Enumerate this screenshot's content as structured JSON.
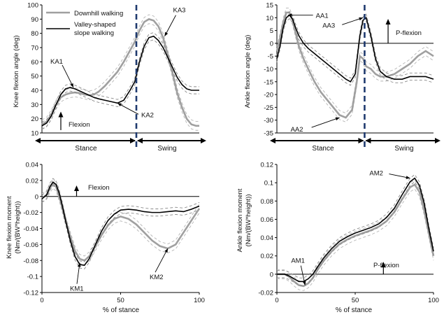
{
  "legend": [
    {
      "label": "Downhill walking",
      "color": "#a0a0a0"
    },
    {
      "label": "Valley-shaped slope walking",
      "color": "#000000"
    }
  ],
  "x_label": "% of stance",
  "colors": {
    "downhill": "#a0a0a0",
    "valley": "#000000",
    "divider": "#1f3a6e"
  },
  "chart_data": [
    {
      "id": "knee_angle",
      "type": "line",
      "ylabel": "Knee flexion angle (deg)",
      "xlim": [
        0,
        100
      ],
      "ylim": [
        10,
        100
      ],
      "yticks": [
        10,
        20,
        30,
        40,
        50,
        60,
        70,
        80,
        90,
        100
      ],
      "xticks": [],
      "toe_off": 60,
      "phase_labels": {
        "stance": "Stance",
        "swing": "Swing"
      },
      "arrow_label": "Flexion",
      "annotations": [
        {
          "label": "KA1",
          "x": 20,
          "y": 42
        },
        {
          "label": "KA2",
          "x": 48,
          "y": 31
        },
        {
          "label": "KA3",
          "x": 78,
          "y": 78
        }
      ],
      "series": [
        {
          "name": "Downhill walking",
          "x": [
            0,
            3,
            6,
            9,
            12,
            15,
            18,
            21,
            24,
            27,
            30,
            33,
            36,
            40,
            44,
            48,
            52,
            56,
            59,
            62,
            65,
            68,
            71,
            74,
            77,
            80,
            83,
            86,
            89,
            92,
            95,
            98,
            100
          ],
          "y": [
            16,
            18,
            23,
            30,
            35,
            37,
            38,
            38.5,
            38,
            37,
            36.5,
            37,
            39,
            43,
            48,
            53,
            60,
            68,
            74,
            82,
            88,
            90,
            89,
            85,
            77,
            65,
            52,
            38,
            28,
            20,
            16,
            15,
            15
          ]
        },
        {
          "name": "Valley-shaped slope walking",
          "x": [
            0,
            3,
            6,
            9,
            12,
            15,
            18,
            21,
            24,
            27,
            30,
            33,
            36,
            40,
            44,
            48,
            52,
            56,
            59,
            62,
            65,
            68,
            71,
            74,
            77,
            80,
            83,
            86,
            89,
            92,
            95,
            98,
            100
          ],
          "y": [
            15,
            17,
            22,
            30,
            37,
            41,
            42,
            41,
            39.5,
            38,
            36.5,
            35,
            34,
            33,
            32,
            31,
            33,
            40,
            46,
            60,
            71,
            77,
            78,
            75,
            70,
            63,
            56,
            49,
            44,
            41,
            40,
            40,
            40
          ]
        }
      ]
    },
    {
      "id": "ankle_angle",
      "type": "line",
      "ylabel": "Ankle flexion angle (deg)",
      "xlim": [
        0,
        100
      ],
      "ylim": [
        -35,
        15
      ],
      "yticks": [
        -35,
        -30,
        -25,
        -20,
        -15,
        -10,
        -5,
        0,
        5,
        10,
        15
      ],
      "xticks": [],
      "toe_off": 56,
      "phase_labels": {
        "stance": "Stance",
        "swing": "Swing"
      },
      "arrow_label": "P-flexion",
      "annotations": [
        {
          "label": "AA1",
          "x": 7,
          "y": 11
        },
        {
          "label": "AA2",
          "x": 40,
          "y": -29
        },
        {
          "label": "AA3",
          "x": 55,
          "y": 10
        }
      ],
      "series": [
        {
          "name": "Downhill walking",
          "x": [
            0,
            2,
            4,
            6,
            8,
            10,
            12,
            14,
            17,
            20,
            24,
            28,
            32,
            36,
            40,
            44,
            48,
            51,
            53,
            55,
            57,
            60,
            63,
            66,
            70,
            75,
            80,
            85,
            90,
            95,
            100
          ],
          "y": [
            -3,
            2,
            8,
            12,
            12,
            9,
            4,
            -1,
            -6,
            -10,
            -15,
            -19,
            -22,
            -25,
            -28,
            -29,
            -26,
            -15,
            -5,
            -6,
            -9,
            -10,
            -12,
            -13,
            -13,
            -12,
            -10,
            -8,
            -5,
            -3,
            -5
          ]
        },
        {
          "name": "Valley-shaped slope walking",
          "x": [
            0,
            2,
            4,
            6,
            8,
            10,
            12,
            14,
            17,
            20,
            24,
            28,
            32,
            36,
            40,
            44,
            47,
            50,
            53,
            55,
            57,
            60,
            63,
            66,
            70,
            75,
            80,
            85,
            90,
            95,
            100
          ],
          "y": [
            -6,
            -1,
            6,
            10,
            11,
            9.5,
            6,
            3,
            0,
            -2,
            -4,
            -6,
            -8,
            -10,
            -12,
            -14,
            -15,
            -12,
            3,
            9,
            10,
            3,
            -6,
            -11,
            -13,
            -14,
            -14,
            -13,
            -13,
            -13,
            -14
          ]
        }
      ]
    },
    {
      "id": "knee_moment",
      "type": "line",
      "ylabel": "Knee flexion moment (Nm/(BW*height))",
      "xlim": [
        0,
        100
      ],
      "ylim": [
        -0.12,
        0.04
      ],
      "yticks": [
        -0.12,
        -0.1,
        -0.08,
        -0.06,
        -0.04,
        -0.02,
        0,
        0.02,
        0.04
      ],
      "xticks": [
        0,
        50,
        100
      ],
      "arrow_label": "Flexion",
      "annotations": [
        {
          "label": "KM1",
          "x": 24,
          "y": -0.083
        },
        {
          "label": "KM2",
          "x": 80,
          "y": -0.065
        }
      ],
      "series": [
        {
          "name": "Downhill walking",
          "x": [
            0,
            3,
            5,
            7,
            9,
            11,
            13,
            15,
            18,
            21,
            24,
            27,
            30,
            34,
            38,
            42,
            46,
            50,
            55,
            60,
            65,
            70,
            75,
            80,
            85,
            90,
            95,
            100
          ],
          "y": [
            -0.002,
            0.002,
            0.01,
            0.016,
            0.012,
            0,
            -0.015,
            -0.03,
            -0.05,
            -0.068,
            -0.078,
            -0.08,
            -0.075,
            -0.062,
            -0.048,
            -0.036,
            -0.028,
            -0.025,
            -0.028,
            -0.035,
            -0.045,
            -0.055,
            -0.062,
            -0.065,
            -0.06,
            -0.045,
            -0.03,
            -0.015
          ]
        },
        {
          "name": "Valley-shaped slope walking",
          "x": [
            0,
            3,
            5,
            7,
            9,
            11,
            13,
            15,
            18,
            21,
            24,
            27,
            30,
            34,
            38,
            42,
            46,
            50,
            55,
            60,
            65,
            70,
            75,
            80,
            85,
            90,
            95,
            100
          ],
          "y": [
            -0.003,
            0.002,
            0.012,
            0.018,
            0.015,
            0.004,
            -0.012,
            -0.03,
            -0.055,
            -0.075,
            -0.085,
            -0.086,
            -0.078,
            -0.06,
            -0.043,
            -0.03,
            -0.022,
            -0.017,
            -0.016,
            -0.017,
            -0.019,
            -0.02,
            -0.02,
            -0.019,
            -0.018,
            -0.019,
            -0.016,
            -0.012
          ]
        }
      ]
    },
    {
      "id": "ankle_moment",
      "type": "line",
      "ylabel": "Ankle flexion moment (Nm/(BW*height))",
      "xlim": [
        0,
        100
      ],
      "ylim": [
        -0.02,
        0.12
      ],
      "yticks": [
        -0.02,
        0,
        0.02,
        0.04,
        0.06,
        0.08,
        0.1,
        0.12
      ],
      "xticks": [
        0,
        50,
        100
      ],
      "arrow_label": "P-flexion",
      "annotations": [
        {
          "label": "AM1",
          "x": 18,
          "y": -0.012
        },
        {
          "label": "AM2",
          "x": 85,
          "y": 0.105
        }
      ],
      "series": [
        {
          "name": "Downhill walking",
          "x": [
            0,
            5,
            8,
            11,
            14,
            17,
            20,
            23,
            26,
            30,
            35,
            40,
            45,
            50,
            55,
            60,
            65,
            70,
            75,
            80,
            85,
            88,
            91,
            94,
            97,
            100
          ],
          "y": [
            0,
            0,
            -0.003,
            -0.008,
            -0.012,
            -0.013,
            -0.01,
            -0.004,
            0.005,
            0.015,
            0.025,
            0.033,
            0.038,
            0.042,
            0.045,
            0.048,
            0.052,
            0.058,
            0.068,
            0.082,
            0.095,
            0.098,
            0.09,
            0.07,
            0.045,
            0.02
          ]
        },
        {
          "name": "Valley-shaped slope walking",
          "x": [
            0,
            5,
            8,
            11,
            14,
            17,
            20,
            23,
            26,
            30,
            35,
            40,
            45,
            50,
            55,
            60,
            65,
            70,
            75,
            80,
            85,
            88,
            91,
            94,
            97,
            100
          ],
          "y": [
            0,
            0,
            -0.002,
            -0.005,
            -0.008,
            -0.008,
            -0.005,
            0,
            0.008,
            0.018,
            0.028,
            0.036,
            0.041,
            0.045,
            0.048,
            0.051,
            0.055,
            0.062,
            0.072,
            0.087,
            0.101,
            0.105,
            0.097,
            0.078,
            0.05,
            0.025
          ]
        }
      ]
    }
  ]
}
